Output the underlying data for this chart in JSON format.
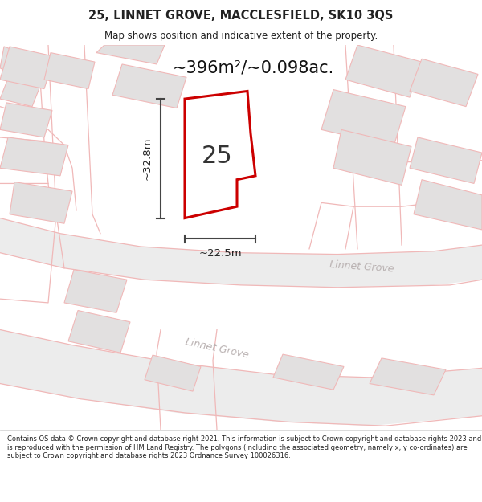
{
  "title_line1": "25, LINNET GROVE, MACCLESFIELD, SK10 3QS",
  "title_line2": "Map shows position and indicative extent of the property.",
  "area_text": "~396m²/~0.098ac.",
  "number_label": "25",
  "dim_height": "~32.8m",
  "dim_width": "~22.5m",
  "street_label_upper": "Linnet Grove",
  "street_label_lower": "Linnet Grove",
  "footer_text": "Contains OS data © Crown copyright and database right 2021. This information is subject to Crown copyright and database rights 2023 and is reproduced with the permission of HM Land Registry. The polygons (including the associated geometry, namely x, y co-ordinates) are subject to Crown copyright and database rights 2023 Ordnance Survey 100026316.",
  "map_bg": "#f5f3f3",
  "plot_fill": "#ffffff",
  "plot_edge": "#cc0000",
  "building_fill": "#e2e0e0",
  "building_edge": "#f0b8b8",
  "road_edge": "#f0b8b8",
  "dim_color": "#444444",
  "text_color": "#222222",
  "area_color": "#111111",
  "street_color": "#b8b0b0",
  "footer_color": "#222222",
  "white": "#ffffff"
}
